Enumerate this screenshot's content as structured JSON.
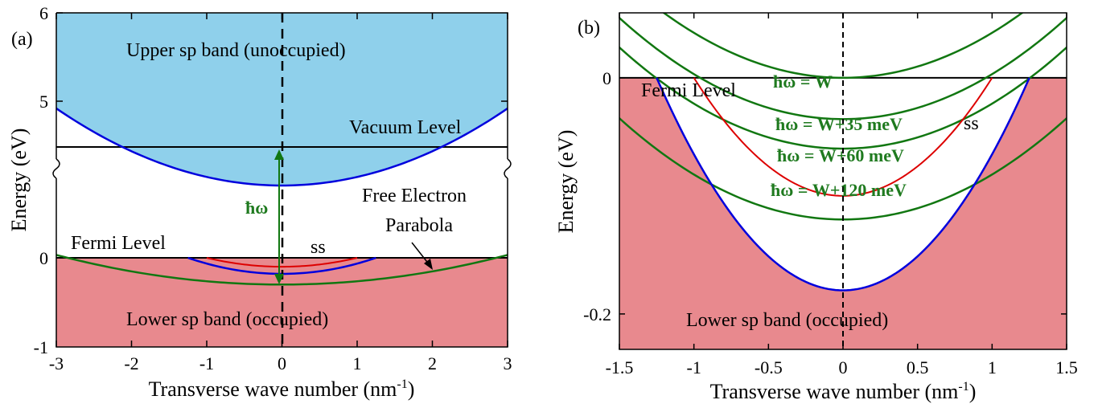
{
  "colors": {
    "occupied_fill": "#e8898e",
    "unoccupied_fill": "#8fd0eb",
    "sp_band": "#0000dd",
    "surface_state": "#dd0000",
    "free_electron": "#117711",
    "level_line": "#000000"
  },
  "chart_data": [
    {
      "panel": "(a)",
      "type": "line",
      "xlabel_main": "Transverse wave number (nm",
      "xlabel_sup": "-1",
      "xlabel_end": ")",
      "ylabel": "Energy (eV)",
      "xlim": [
        -3,
        3
      ],
      "x_ticks": [
        "-3",
        "-2",
        "-1",
        "0",
        "1",
        "2",
        "3"
      ],
      "y_ticks": [
        "-1",
        "0",
        "5",
        "6"
      ],
      "axis_break": true,
      "annotations": {
        "upper_band": "Upper sp band (unoccupied)",
        "lower_band": "Lower sp band (occupied)",
        "vacuum": "Vacuum Level",
        "fermi": "Fermi Level",
        "free_electron_1": "Free Electron",
        "free_electron_2": "Parabola",
        "ss": "ss",
        "hbar_omega": "ħω"
      },
      "curves": {
        "lower_sp_band_bottom_eV": -0.18,
        "lower_sp_band_crossing_nm": 1.25,
        "surface_state_bottom_eV": -0.1,
        "surface_state_crossing_nm": 1.0,
        "free_electron_parabola_bottom_eV": -0.3,
        "free_electron_parabola_crossing_nm": 2.85
      }
    },
    {
      "panel": "(b)",
      "type": "line",
      "xlabel_main": "Transverse wave number (nm",
      "xlabel_sup": "-1",
      "xlabel_end": ")",
      "ylabel": "Energy (eV)",
      "xlim": [
        -1.5,
        1.5
      ],
      "ylim": [
        -0.23,
        0.055
      ],
      "x_ticks": [
        -1.5,
        -1,
        -0.5,
        0,
        0.5,
        1,
        1.5
      ],
      "x_tick_labels": [
        "-1.5",
        "-1",
        "-0.5",
        "0",
        "0.5",
        "1",
        "1.5"
      ],
      "y_ticks": [
        0,
        -0.2
      ],
      "y_tick_labels": [
        "0",
        "-0.2"
      ],
      "annotations": {
        "fermi": "Fermi Level",
        "lower_band": "Lower sp band (occupied)",
        "ss": "ss"
      },
      "lower_sp_band": {
        "bottom_eV": -0.18,
        "k_fermi_nm": 1.25
      },
      "surface_state": {
        "bottom_eV": -0.1,
        "k_fermi_nm": 1.0
      },
      "series": [
        {
          "name": "ħω = W",
          "offset_meV": 0
        },
        {
          "name": "ħω = W+35 meV",
          "offset_meV": 35
        },
        {
          "name": "ħω = W+60 meV",
          "offset_meV": 60
        },
        {
          "name": "ħω = W+120 meV",
          "offset_meV": 120
        }
      ],
      "free_electron_curvature_eV_nm2": 0.0381
    }
  ]
}
